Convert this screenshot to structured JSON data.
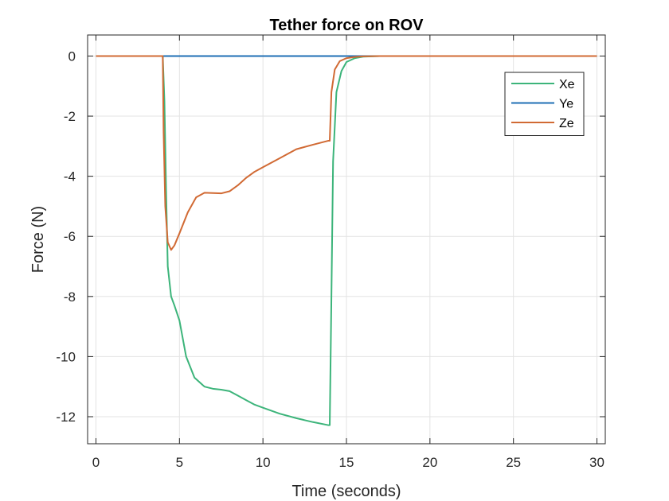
{
  "chart_data": {
    "type": "line",
    "title": "Tether force on ROV",
    "xlabel": "Time (seconds)",
    "ylabel": "Force (N)",
    "xlim": [
      -0.5,
      30.5
    ],
    "ylim": [
      -12.9,
      0.7
    ],
    "xticks": [
      0,
      5,
      10,
      15,
      20,
      25,
      30
    ],
    "yticks": [
      0,
      -2,
      -4,
      -6,
      -8,
      -10,
      -12
    ],
    "xtick_labels": [
      "0",
      "5",
      "10",
      "15",
      "20",
      "25",
      "30"
    ],
    "ytick_labels": [
      "0",
      "-2",
      "-4",
      "-6",
      "-8",
      "-10",
      "-12"
    ],
    "grid": true,
    "legend_position": "top-right",
    "series": [
      {
        "name": "Xe",
        "color": "#3cb47a",
        "x": [
          0,
          4.0,
          4.1,
          4.2,
          4.3,
          4.5,
          4.7,
          5.0,
          5.4,
          5.9,
          6.5,
          7.0,
          7.5,
          8.0,
          8.5,
          9.0,
          9.5,
          10.0,
          11.0,
          12.0,
          13.0,
          13.9,
          14.0,
          14.1,
          14.2,
          14.4,
          14.7,
          15.0,
          15.5,
          16.0,
          17.0,
          30.0
        ],
        "y": [
          0,
          0,
          -1.5,
          -4.5,
          -7.0,
          -8.0,
          -8.3,
          -8.8,
          -10.0,
          -10.7,
          -11.0,
          -11.07,
          -11.1,
          -11.15,
          -11.3,
          -11.45,
          -11.6,
          -11.7,
          -11.9,
          -12.05,
          -12.18,
          -12.28,
          -12.28,
          -8.0,
          -3.5,
          -1.2,
          -0.5,
          -0.2,
          -0.07,
          -0.02,
          0,
          0
        ]
      },
      {
        "name": "Ye",
        "color": "#1f6fb4",
        "x": [
          0,
          30
        ],
        "y": [
          0,
          0
        ]
      },
      {
        "name": "Ze",
        "color": "#d16a34",
        "x": [
          0,
          4.0,
          4.05,
          4.15,
          4.3,
          4.5,
          4.7,
          5.0,
          5.5,
          6.0,
          6.5,
          7.0,
          7.5,
          8.0,
          8.5,
          9.0,
          9.5,
          10.0,
          11.0,
          12.0,
          13.0,
          13.9,
          14.0,
          14.1,
          14.3,
          14.6,
          15.0,
          15.5,
          16.0,
          17.0,
          30.0
        ],
        "y": [
          0,
          0,
          -2.5,
          -5.0,
          -6.2,
          -6.45,
          -6.3,
          -5.9,
          -5.2,
          -4.7,
          -4.55,
          -4.56,
          -4.57,
          -4.5,
          -4.3,
          -4.05,
          -3.85,
          -3.7,
          -3.4,
          -3.1,
          -2.95,
          -2.82,
          -2.82,
          -1.2,
          -0.45,
          -0.17,
          -0.07,
          -0.03,
          -0.01,
          0,
          0
        ]
      }
    ]
  }
}
